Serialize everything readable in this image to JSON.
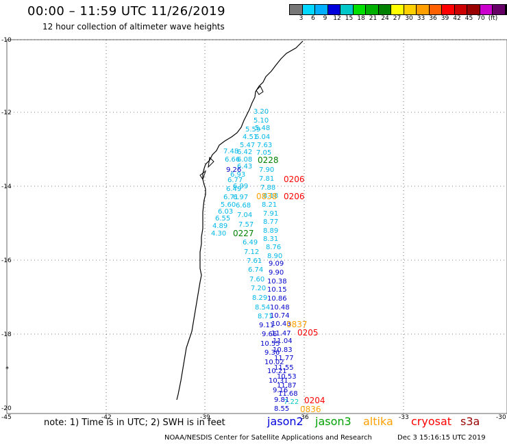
{
  "header": {
    "title": "00:00 – 11:59 UTC 11/26/2019",
    "subtitle": "12 hour collection of altimeter wave heights"
  },
  "color_scale": {
    "colors": [
      "#777777",
      "#00d8ff",
      "#00b0ff",
      "#0000dd",
      "#00c8c8",
      "#00e000",
      "#00b000",
      "#008000",
      "#ffff00",
      "#ffd000",
      "#ffa000",
      "#ff6000",
      "#ff0000",
      "#cc0000",
      "#990000",
      "#cc00cc",
      "#660066",
      "#000000"
    ],
    "labels": [
      "3",
      "6",
      "9",
      "12",
      "15",
      "18",
      "21",
      "24",
      "27",
      "30",
      "33",
      "36",
      "39",
      "42",
      "45",
      "70",
      "(ft)"
    ]
  },
  "axes": {
    "lat_labels": [
      "-10",
      "-12",
      "-14",
      "-16",
      "-18",
      "-20"
    ],
    "lon_labels": [
      "-45",
      "-42",
      "-39",
      "-36",
      "-33",
      "-30"
    ]
  },
  "points": {
    "cyan": [
      {
        "v": "3.20"
      },
      {
        "v": "5.10"
      },
      {
        "v": "5.59"
      },
      {
        "v": "5.48"
      },
      {
        "v": "4.51"
      },
      {
        "v": "6.04"
      },
      {
        "v": "5.47"
      },
      {
        "v": "7.63"
      },
      {
        "v": "7.48"
      },
      {
        "v": "6.42"
      },
      {
        "v": "7.05"
      },
      {
        "v": "6.66"
      },
      {
        "v": "6.08"
      },
      {
        "v": "6.43"
      },
      {
        "v": "7.90"
      },
      {
        "v": "6.93"
      },
      {
        "v": "6.77"
      },
      {
        "v": "7.81"
      },
      {
        "v": "6.49"
      },
      {
        "v": "6.99"
      },
      {
        "v": "7.88"
      },
      {
        "v": "6.71"
      },
      {
        "v": "6.97"
      },
      {
        "v": "8.18"
      },
      {
        "v": "5.60"
      },
      {
        "v": "6.68"
      },
      {
        "v": "8.21"
      },
      {
        "v": "6.03"
      },
      {
        "v": "7.04"
      },
      {
        "v": "7.91"
      },
      {
        "v": "6.55"
      },
      {
        "v": "8.77"
      },
      {
        "v": "4.89"
      },
      {
        "v": "7.57"
      },
      {
        "v": "8.89"
      },
      {
        "v": "4.30"
      },
      {
        "v": "8.31"
      },
      {
        "v": "6.49"
      },
      {
        "v": "8.76"
      },
      {
        "v": "7.12"
      },
      {
        "v": "8.90"
      },
      {
        "v": "7.61"
      },
      {
        "v": "6.74"
      },
      {
        "v": "7.60"
      },
      {
        "v": "7.20"
      },
      {
        "v": "8.29"
      },
      {
        "v": "8.54"
      },
      {
        "v": "8.71"
      }
    ],
    "blue": [
      {
        "v": "9.26"
      },
      {
        "v": "9.09"
      },
      {
        "v": "9.90"
      },
      {
        "v": "10.38"
      },
      {
        "v": "10.15"
      },
      {
        "v": "10.86"
      },
      {
        "v": "10.48"
      },
      {
        "v": "10.74"
      },
      {
        "v": "9.11"
      },
      {
        "v": "10.43"
      },
      {
        "v": "9.66"
      },
      {
        "v": "11.47"
      },
      {
        "v": "10.55"
      },
      {
        "v": "11.04"
      },
      {
        "v": "9.36"
      },
      {
        "v": "10.83"
      },
      {
        "v": "10.02"
      },
      {
        "v": "11.77"
      },
      {
        "v": "10.21"
      },
      {
        "v": "11.55"
      },
      {
        "v": "10.31"
      },
      {
        "v": "10.53"
      },
      {
        "v": "9.16"
      },
      {
        "v": "11.87"
      },
      {
        "v": "11.68"
      },
      {
        "v": "9.81"
      },
      {
        "v": "8.55"
      }
    ],
    "green_labels": [
      "0228",
      "0227"
    ],
    "red_labels": [
      "0206",
      "0206",
      "0205",
      "0204"
    ],
    "orange_labels": [
      "0838",
      "0837",
      "0836"
    ],
    "green_points": [
      {
        "v": "7.22"
      }
    ]
  },
  "footer": {
    "note": "note: 1) Time is in UTC; 2) SWH is in feet",
    "legend": [
      {
        "name": "jason2",
        "color": "#0000dd"
      },
      {
        "name": "jason3",
        "color": "#00a000"
      },
      {
        "name": "altika",
        "color": "#ffa000"
      },
      {
        "name": "cryosat",
        "color": "#ff0000"
      },
      {
        "name": "s3a",
        "color": "#990000"
      }
    ],
    "credit": "NOAA/NESDIS Center for Satellite Applications and Research",
    "credit_time": "Dec  3 15:16:15 UTC 2019"
  }
}
